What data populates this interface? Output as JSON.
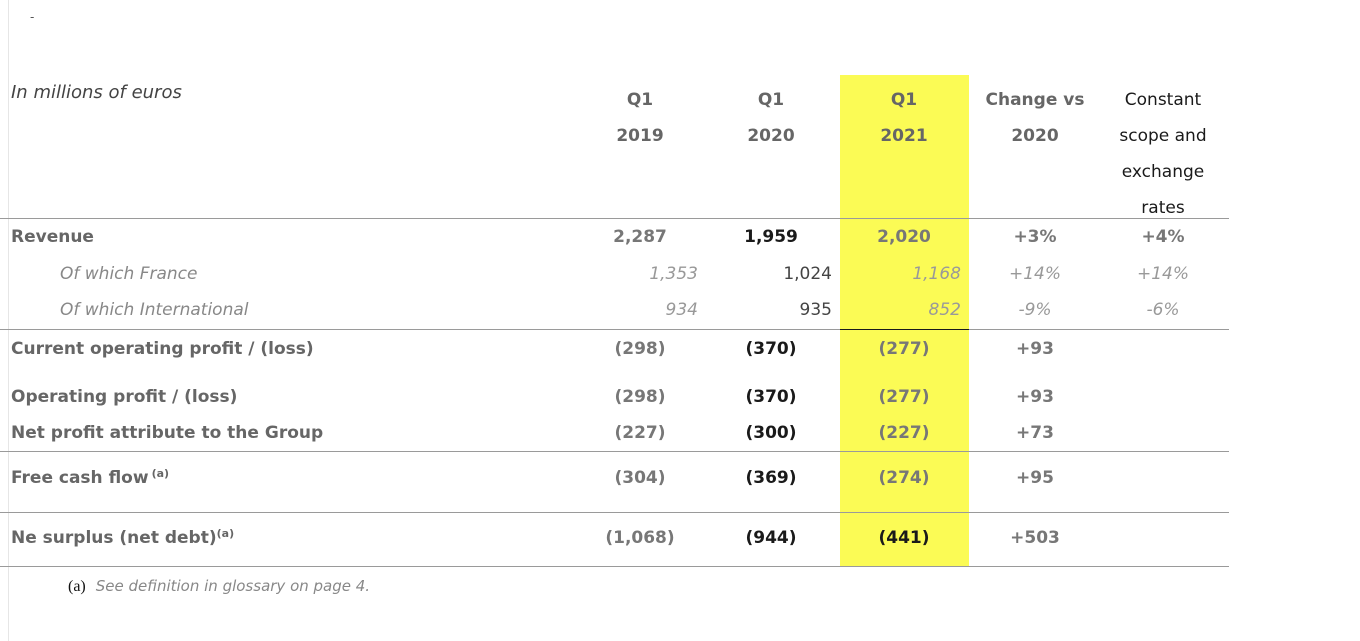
{
  "top_mark": "-",
  "header": {
    "units": "In millions of euros",
    "cols": [
      {
        "l1": "Q1",
        "l2": "2019"
      },
      {
        "l1": "Q1",
        "l2": "2020"
      },
      {
        "l1": "Q1",
        "l2": "2021"
      },
      {
        "l1": "Change vs",
        "l2": "2020"
      },
      {
        "l1": "Constant",
        "l2": "scope and",
        "l3": "exchange",
        "l4": "rates"
      }
    ]
  },
  "rows": [
    {
      "label": "Revenue",
      "q19": "2,287",
      "q20": "1,959",
      "q21": "2,020",
      "chg": "+3%",
      "const": "+4%"
    },
    {
      "label": "Of which France",
      "q19": "1,353",
      "q20": "1,024",
      "q21": "1,168",
      "chg": "+14%",
      "const": "+14%"
    },
    {
      "label": "Of which International",
      "q19": "934",
      "q20": "935",
      "q21": "852",
      "chg": "-9%",
      "const": "-6%"
    },
    {
      "label": "Current operating profit / (loss)",
      "q19": "(298)",
      "q20": "(370)",
      "q21": "(277)",
      "chg": "+93"
    },
    {
      "label": "Operating profit / (loss)",
      "q19": "(298)",
      "q20": "(370)",
      "q21": "(277)",
      "chg": "+93"
    },
    {
      "label": "Net profit attribute to the Group",
      "q19": "(227)",
      "q20": "(300)",
      "q21": "(227)",
      "chg": "+73"
    },
    {
      "label": "Free cash flow",
      "sup": "(a)",
      "q19": "(304)",
      "q20": "(369)",
      "q21": "(274)",
      "chg": "+95"
    },
    {
      "label": "Ne surplus (net debt)",
      "sup": "(a)",
      "q19": "(1,068)",
      "q20": "(944)",
      "q21": "(441)",
      "chg": "+503"
    }
  ],
  "footnote": {
    "marker": "(a)",
    "text": "See definition in glossary on page 4."
  },
  "colors": {
    "highlight": "#fbfb55",
    "rule": "#9a9a9a"
  }
}
